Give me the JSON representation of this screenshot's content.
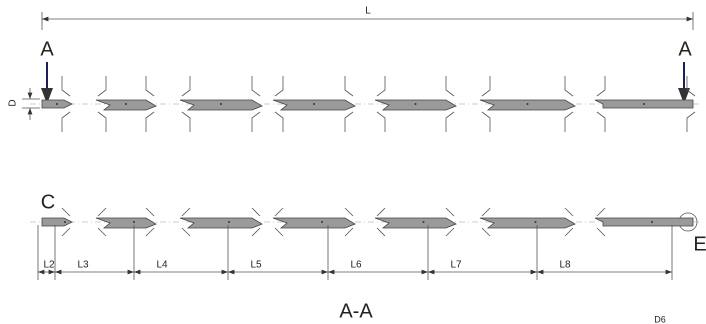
{
  "labels": {
    "overall_length": "L",
    "section_left": "A",
    "section_right": "A",
    "diameter": "D",
    "point_c": "C",
    "point_e": "E"
  },
  "dimensions": [
    "L2",
    "L3",
    "L4",
    "L5",
    "L6",
    "L7",
    "L8"
  ],
  "section_title": "A-A",
  "detail": "D6"
}
